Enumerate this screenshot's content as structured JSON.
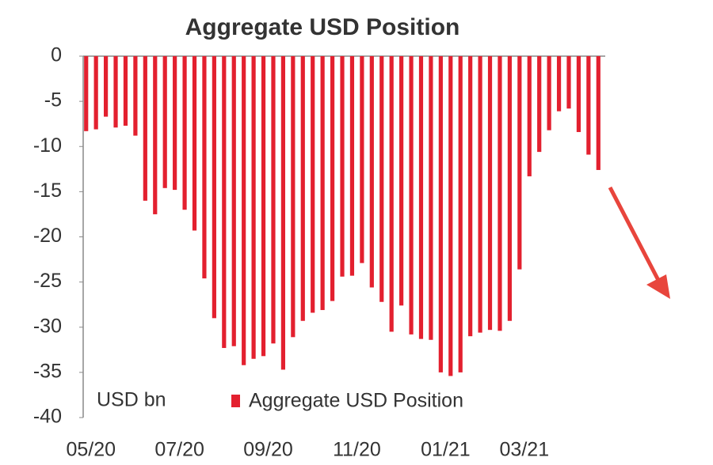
{
  "chart_data": {
    "type": "bar",
    "title": "Aggregate USD Position",
    "annotation": "USD bn",
    "categories": [
      "05/20",
      null,
      null,
      null,
      null,
      null,
      null,
      null,
      null,
      "07/20",
      null,
      null,
      null,
      null,
      null,
      null,
      null,
      null,
      "09/20",
      null,
      null,
      null,
      null,
      null,
      null,
      null,
      null,
      "11/20",
      null,
      null,
      null,
      null,
      null,
      null,
      null,
      null,
      "01/21",
      null,
      null,
      null,
      null,
      null,
      null,
      null,
      "03/21",
      null,
      null,
      null,
      null,
      null,
      null,
      null,
      null
    ],
    "series": [
      {
        "name": "Aggregate USD Position",
        "color": "#e3202f",
        "values": [
          -8.3,
          -8.1,
          -6.7,
          -7.9,
          -7.7,
          -8.8,
          -16.0,
          -17.5,
          -14.6,
          -14.8,
          -17.0,
          -19.3,
          -24.6,
          -29.0,
          -32.3,
          -32.1,
          -34.2,
          -33.5,
          -33.2,
          -31.8,
          -34.7,
          -31.1,
          -29.3,
          -28.4,
          -28.1,
          -27.1,
          -24.4,
          -24.3,
          -22.9,
          -25.6,
          -27.2,
          -30.5,
          -27.6,
          -30.8,
          -31.3,
          -31.4,
          -35.0,
          -35.4,
          -35.0,
          -31.0,
          -30.6,
          -30.3,
          -30.4,
          -29.3,
          -23.6,
          -13.3,
          -10.6,
          -8.2,
          -6.1,
          -5.8,
          -8.4,
          -10.9,
          -12.6
        ]
      }
    ],
    "ylim": [
      -40,
      0
    ],
    "yticks": [
      0,
      -5,
      -10,
      -15,
      -20,
      -25,
      -30,
      -35,
      -40
    ],
    "grid": false
  }
}
